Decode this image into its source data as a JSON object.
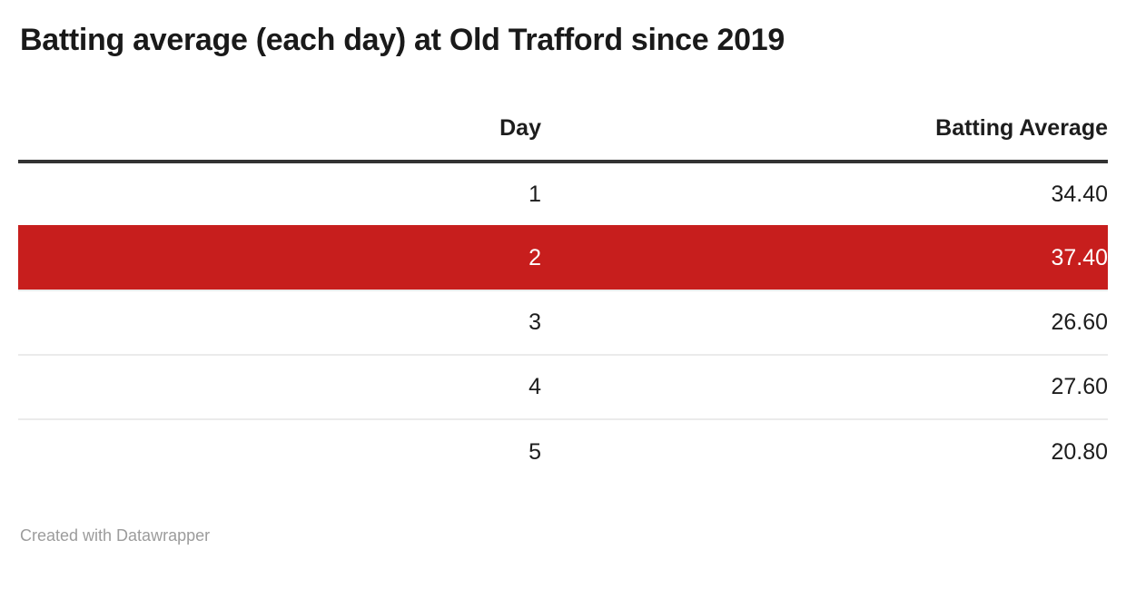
{
  "header": {
    "title": "Batting average (each day) at Old Trafford since 2019"
  },
  "table": {
    "columns": [
      {
        "label": "Day",
        "align": "right"
      },
      {
        "label": "Batting Average",
        "align": "right"
      }
    ],
    "rows": [
      {
        "day": "1",
        "batting_average": "34.40",
        "highlight": false
      },
      {
        "day": "2",
        "batting_average": "37.40",
        "highlight": true
      },
      {
        "day": "3",
        "batting_average": "26.60",
        "highlight": false
      },
      {
        "day": "4",
        "batting_average": "27.60",
        "highlight": false
      },
      {
        "day": "5",
        "batting_average": "20.80",
        "highlight": false
      }
    ]
  },
  "footer": {
    "credit": "Created with Datawrapper"
  },
  "colors": {
    "highlight_row_bg": "#c71e1d",
    "highlight_row_text": "#ffffff",
    "header_rule": "#333333",
    "row_divider": "#ebebeb",
    "text": "#1d1d1d",
    "footer_text": "#9c9c9c",
    "background": "#ffffff"
  },
  "chart_data": {
    "type": "table",
    "title": "Batting average (each day) at Old Trafford since 2019",
    "columns": [
      "Day",
      "Batting Average"
    ],
    "categories": [
      "1",
      "2",
      "3",
      "4",
      "5"
    ],
    "values": [
      34.4,
      37.4,
      26.6,
      27.6,
      20.8
    ],
    "rows": [
      [
        1,
        34.4
      ],
      [
        2,
        37.4
      ],
      [
        3,
        26.6
      ],
      [
        4,
        27.6
      ],
      [
        5,
        20.8
      ]
    ],
    "highlighted_day": 2,
    "credit": "Created with Datawrapper",
    "layout": {
      "column_alignment": "right",
      "highlight_color": "#c71e1d",
      "grid": "horizontal-dividers"
    }
  }
}
